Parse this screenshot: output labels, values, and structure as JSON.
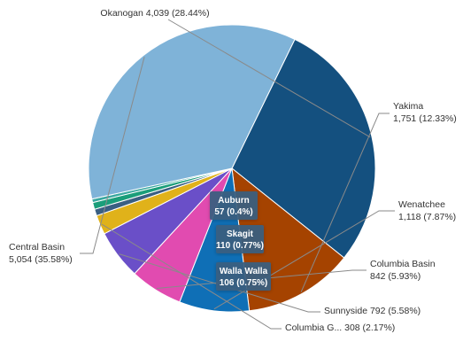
{
  "chart_data": {
    "type": "pie",
    "title": "",
    "start_angle_deg": -64,
    "direction": "clockwise",
    "series": [
      {
        "name": "Okanogan",
        "value": 4039,
        "percent": "28.44%",
        "label": "Okanogan 4,039 (28.44%)",
        "color": "#14507f"
      },
      {
        "name": "Yakima",
        "value": 1751,
        "percent": "12.33%",
        "label_lines": [
          "Yakima",
          "1,751 (12.33%)"
        ],
        "color": "#a54300"
      },
      {
        "name": "Wenatchee",
        "value": 1118,
        "percent": "7.87%",
        "label_lines": [
          "Wenatchee",
          "1,118 (7.87%)"
        ],
        "color": "#0f6fb6"
      },
      {
        "name": "Columbia Basin",
        "value": 842,
        "percent": "5.93%",
        "label_lines": [
          "Columbia Basin",
          "842 (5.93%)"
        ],
        "color": "#e14bb0"
      },
      {
        "name": "Sunnyside",
        "value": 792,
        "percent": "5.58%",
        "label": "Sunnyside 792 (5.58%)",
        "color": "#6a4fc8"
      },
      {
        "name": "Columbia G...",
        "value": 308,
        "percent": "2.17%",
        "label": "Columbia G... 308 (2.17%)",
        "color": "#e0b21a"
      },
      {
        "name": "Walla Walla",
        "value": 106,
        "percent": "0.75%",
        "tooltip_lines": [
          "Walla Walla",
          "106 (0.75%)"
        ],
        "color": "#3a5f82"
      },
      {
        "name": "Skagit",
        "value": 110,
        "percent": "0.77%",
        "tooltip_lines": [
          "Skagit",
          "110 (0.77%)"
        ],
        "color": "#1a9e7a"
      },
      {
        "name": "Auburn",
        "value": 57,
        "percent": "0.4%",
        "tooltip_lines": [
          "Auburn",
          "57 (0.4%)"
        ],
        "color": "#3aa8a0"
      },
      {
        "name": "Central Basin",
        "value": 5054,
        "percent": "35.58%",
        "label_lines": [
          "Central Basin",
          "5,054 (35.58%)"
        ],
        "color": "#7fb3d8"
      }
    ]
  }
}
